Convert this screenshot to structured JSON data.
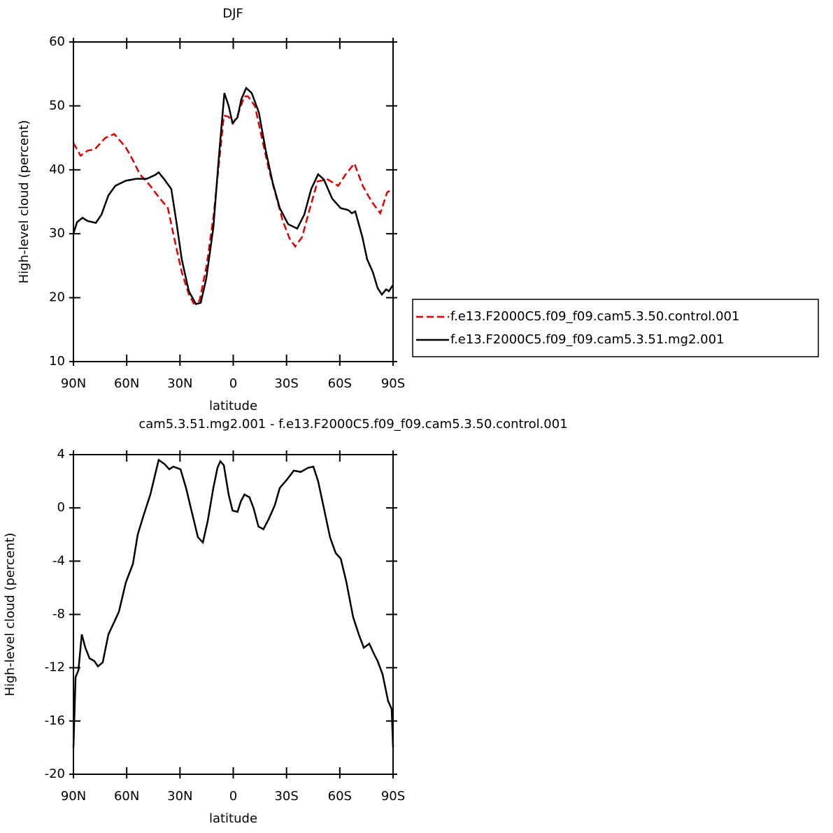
{
  "chart_data": [
    {
      "type": "line",
      "title": "DJF",
      "xlabel": "latitude",
      "ylabel": "High-level cloud (percent)",
      "xlim": [
        90,
        -90
      ],
      "ylim": [
        10,
        60
      ],
      "xticks": [
        {
          "value": 90,
          "label": "90N"
        },
        {
          "value": 60,
          "label": "60N"
        },
        {
          "value": 30,
          "label": "30N"
        },
        0,
        {
          "value": -30,
          "label": "30S"
        },
        {
          "value": -60,
          "label": "60S"
        },
        {
          "value": -90,
          "label": "90S"
        }
      ],
      "yticks": [
        10,
        20,
        30,
        40,
        50,
        60
      ],
      "legend": "right",
      "series": [
        {
          "name": "f.e13.F2000C5.f09_f09.cam5.3.50.control.001",
          "color": "#e00000",
          "dash": true,
          "x": [
            90,
            86,
            82,
            78,
            72,
            67,
            60.5,
            56.5,
            52.6,
            46.7,
            42.7,
            36.8,
            33,
            29,
            25,
            22.3,
            19,
            15,
            11,
            7.3,
            5.3,
            2.6,
            0,
            -2.4,
            -6.3,
            -8.3,
            -12.2,
            -16.1,
            -20.1,
            -24,
            -27.9,
            -31.8,
            -34.9,
            -38.8,
            -42.7,
            -47.5,
            -53.2,
            -59.1,
            -63.1,
            -68.2,
            -72.9,
            -78,
            -82.8,
            -86.7,
            -90
          ],
          "values": [
            44.2,
            42.2,
            43,
            43.2,
            45,
            45.6,
            43.5,
            41.5,
            39.3,
            37.5,
            36,
            34,
            29,
            24,
            20.5,
            19.1,
            19.5,
            25,
            33,
            43,
            48.5,
            48.3,
            47.3,
            48.5,
            51.5,
            51.5,
            50,
            45,
            40,
            36,
            32,
            29.2,
            28,
            29.5,
            33.5,
            38.2,
            38.5,
            37.5,
            39.2,
            41,
            37.5,
            35,
            33.2,
            36.5,
            37
          ]
        },
        {
          "name": "f.e13.F2000C5.f09_f09.cam5.3.51.mg2.001",
          "color": "#000000",
          "dash": false,
          "x": [
            90,
            88,
            84.9,
            82.1,
            77.4,
            74.2,
            70.3,
            66.4,
            60.5,
            54.6,
            48.6,
            44,
            42,
            38.8,
            34.9,
            32.1,
            29,
            25,
            21,
            18.3,
            15.2,
            11.2,
            8.1,
            5,
            2.6,
            0.4,
            -2.4,
            -4.5,
            -7.3,
            -10.4,
            -14.4,
            -18.3,
            -22.2,
            -26.2,
            -30.9,
            -36,
            -40,
            -43.9,
            -47.8,
            -51,
            -55.7,
            -60.5,
            -64.8,
            -66.8,
            -68.7,
            -70.7,
            -72.7,
            -75.4,
            -78.6,
            -81.3,
            -83.7,
            -86.1,
            -87.6,
            -90
          ],
          "values": [
            30,
            31.8,
            32.5,
            32,
            31.7,
            33,
            36,
            37.5,
            38.3,
            38.6,
            38.6,
            39.2,
            39.6,
            38.5,
            37,
            32,
            26,
            21,
            19,
            19.2,
            23,
            31,
            42,
            52,
            50,
            47.3,
            48.2,
            51,
            52.8,
            52,
            49,
            43,
            38,
            34,
            31.5,
            30.8,
            33,
            37,
            39.3,
            38.5,
            35.5,
            34,
            33.7,
            33.2,
            33.5,
            31.5,
            29.5,
            26,
            24,
            21.5,
            20.5,
            21.3,
            21,
            22
          ]
        }
      ]
    },
    {
      "type": "line",
      "title": "cam5.3.51.mg2.001 - f.e13.F2000C5.f09_f09.cam5.3.50.control.001",
      "xlabel": "latitude",
      "ylabel": "High-level cloud (percent)",
      "xlim": [
        90,
        -90
      ],
      "ylim": [
        -20,
        4
      ],
      "xticks": [
        {
          "value": 90,
          "label": "90N"
        },
        {
          "value": 60,
          "label": "60N"
        },
        {
          "value": 30,
          "label": "30N"
        },
        0,
        {
          "value": -30,
          "label": "30S"
        },
        {
          "value": -60,
          "label": "60S"
        },
        {
          "value": -90,
          "label": "90S"
        }
      ],
      "yticks": [
        -20,
        -16,
        -12,
        -8,
        -4,
        0,
        4
      ],
      "series": [
        {
          "color": "#000000",
          "dash": false,
          "x": [
            90,
            88.8,
            87.2,
            85.3,
            83.3,
            80.9,
            78.2,
            76.2,
            73.5,
            70.3,
            67.5,
            64.4,
            60.5,
            56.5,
            53.8,
            50.6,
            46.7,
            44,
            42,
            38.8,
            36,
            33.7,
            29.7,
            26.6,
            23,
            19.9,
            17.1,
            14.4,
            11.2,
            8.9,
            7.3,
            5.3,
            2.6,
            0.4,
            -2.4,
            -4.3,
            -6.3,
            -9.1,
            -11.4,
            -14.2,
            -17,
            -20.1,
            -23.4,
            -26.2,
            -30.1,
            -34.1,
            -38,
            -42,
            -45.1,
            -47.8,
            -51,
            -54.5,
            -57.7,
            -60.5,
            -63.6,
            -67.5,
            -70.7,
            -73.5,
            -76.6,
            -79.4,
            -81.3,
            -84.1,
            -87.2,
            -89.2,
            -90
          ],
          "values": [
            -18,
            -12.7,
            -12.2,
            -9.5,
            -10.5,
            -11.3,
            -11.5,
            -11.9,
            -11.6,
            -9.5,
            -8.7,
            -7.8,
            -5.6,
            -4.2,
            -2,
            -0.6,
            1,
            2.5,
            3.6,
            3.3,
            2.9,
            3.1,
            2.9,
            1.5,
            -0.5,
            -2.2,
            -2.6,
            -1,
            1.5,
            3,
            3.5,
            3.2,
            1,
            -0.2,
            -0.3,
            0.5,
            1,
            0.8,
            0,
            -1.4,
            -1.6,
            -0.8,
            0.2,
            1.5,
            2.1,
            2.8,
            2.7,
            3,
            3.1,
            2,
            0,
            -2.2,
            -3.4,
            -3.8,
            -5.5,
            -8.2,
            -9.5,
            -10.5,
            -10.2,
            -11,
            -11.5,
            -12.5,
            -14.5,
            -15.1,
            -18
          ]
        }
      ]
    }
  ]
}
